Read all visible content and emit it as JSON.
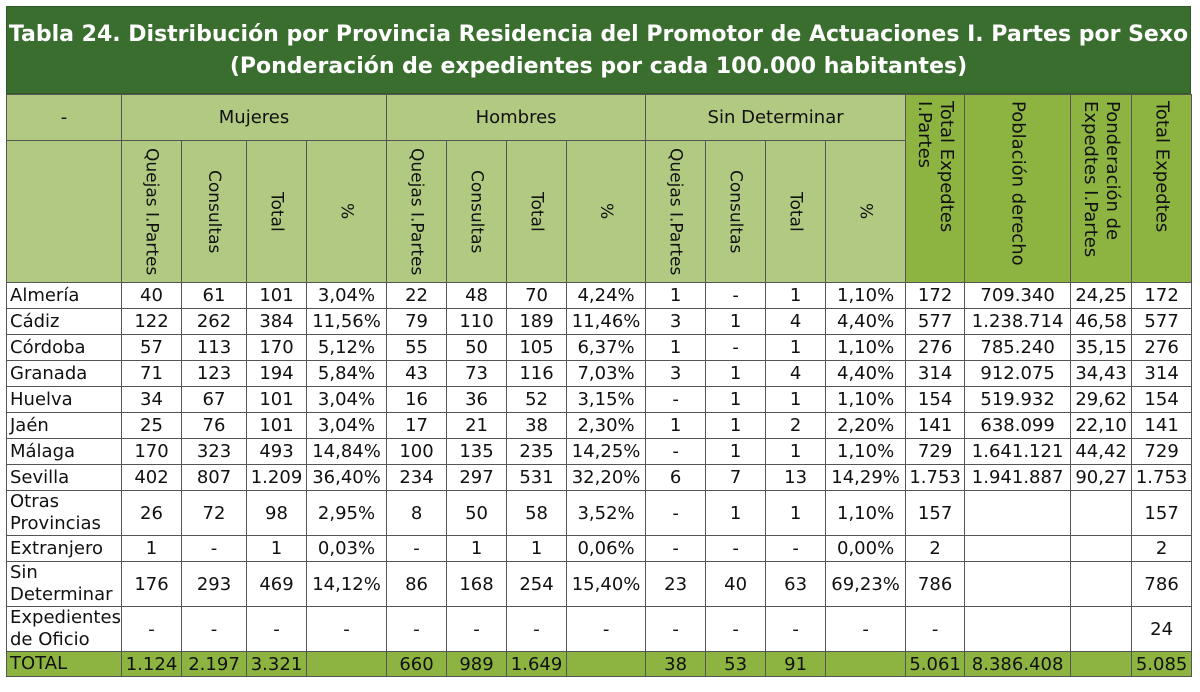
{
  "title": {
    "line1": "Tabla 24. Distribución por Provincia Residencia del Promotor de Actuaciones I. Partes por Sexo",
    "line2": "(Ponderación de expedientes por cada 100.000 habitantes)"
  },
  "header": {
    "dash": "-",
    "groups": [
      "Mujeres",
      "Hombres",
      "Sin Determinar"
    ],
    "subcols": [
      "Quejas I.Partes",
      "Consultas",
      "Total",
      "%"
    ],
    "totals": [
      "Total Expedtes I.Partes",
      "Población derecho",
      "Ponderación de Expedtes I.Partes",
      "Total Expedtes"
    ]
  },
  "colors": {
    "title_bg": "#3a6e2f",
    "header_bg": "#b2c982",
    "total_bg": "#8db441"
  },
  "rows": [
    {
      "prov": "Almería",
      "c": [
        "40",
        "61",
        "101",
        "3,04%",
        "22",
        "48",
        "70",
        "4,24%",
        "1",
        "-",
        "1",
        "1,10%",
        "172",
        "709.340",
        "24,25",
        "172"
      ]
    },
    {
      "prov": "Cádiz",
      "c": [
        "122",
        "262",
        "384",
        "11,56%",
        "79",
        "110",
        "189",
        "11,46%",
        "3",
        "1",
        "4",
        "4,40%",
        "577",
        "1.238.714",
        "46,58",
        "577"
      ]
    },
    {
      "prov": "Córdoba",
      "c": [
        "57",
        "113",
        "170",
        "5,12%",
        "55",
        "50",
        "105",
        "6,37%",
        "1",
        "-",
        "1",
        "1,10%",
        "276",
        "785.240",
        "35,15",
        "276"
      ]
    },
    {
      "prov": "Granada",
      "c": [
        "71",
        "123",
        "194",
        "5,84%",
        "43",
        "73",
        "116",
        "7,03%",
        "3",
        "1",
        "4",
        "4,40%",
        "314",
        "912.075",
        "34,43",
        "314"
      ]
    },
    {
      "prov": "Huelva",
      "c": [
        "34",
        "67",
        "101",
        "3,04%",
        "16",
        "36",
        "52",
        "3,15%",
        "-",
        "1",
        "1",
        "1,10%",
        "154",
        "519.932",
        "29,62",
        "154"
      ]
    },
    {
      "prov": "Jaén",
      "c": [
        "25",
        "76",
        "101",
        "3,04%",
        "17",
        "21",
        "38",
        "2,30%",
        "1",
        "1",
        "2",
        "2,20%",
        "141",
        "638.099",
        "22,10",
        "141"
      ]
    },
    {
      "prov": "Málaga",
      "c": [
        "170",
        "323",
        "493",
        "14,84%",
        "100",
        "135",
        "235",
        "14,25%",
        "-",
        "1",
        "1",
        "1,10%",
        "729",
        "1.641.121",
        "44,42",
        "729"
      ]
    },
    {
      "prov": "Sevilla",
      "c": [
        "402",
        "807",
        "1.209",
        "36,40%",
        "234",
        "297",
        "531",
        "32,20%",
        "6",
        "7",
        "13",
        "14,29%",
        "1.753",
        "1.941.887",
        "90,27",
        "1.753"
      ]
    },
    {
      "prov": "Otras Provincias",
      "c": [
        "26",
        "72",
        "98",
        "2,95%",
        "8",
        "50",
        "58",
        "3,52%",
        "-",
        "1",
        "1",
        "1,10%",
        "157",
        "",
        "",
        "157"
      ]
    },
    {
      "prov": "Extranjero",
      "c": [
        "1",
        "-",
        "1",
        "0,03%",
        "-",
        "1",
        "1",
        "0,06%",
        "-",
        "-",
        "-",
        "0,00%",
        "2",
        "",
        "",
        "2"
      ]
    },
    {
      "prov": "Sin Determinar",
      "c": [
        "176",
        "293",
        "469",
        "14,12%",
        "86",
        "168",
        "254",
        "15,40%",
        "23",
        "40",
        "63",
        "69,23%",
        "786",
        "",
        "",
        "786"
      ]
    },
    {
      "prov": "Expedientes de Oficio",
      "c": [
        "-",
        "-",
        "-",
        "-",
        "-",
        "-",
        "-",
        "-",
        "-",
        "-",
        "-",
        "-",
        "-",
        "",
        "",
        "24"
      ]
    }
  ],
  "total_row": {
    "prov": "TOTAL",
    "c": [
      "1.124",
      "2.197",
      "3.321",
      "",
      "660",
      "989",
      "1.649",
      "",
      "38",
      "53",
      "91",
      "",
      "5.061",
      "8.386.408",
      "",
      "5.085"
    ]
  }
}
